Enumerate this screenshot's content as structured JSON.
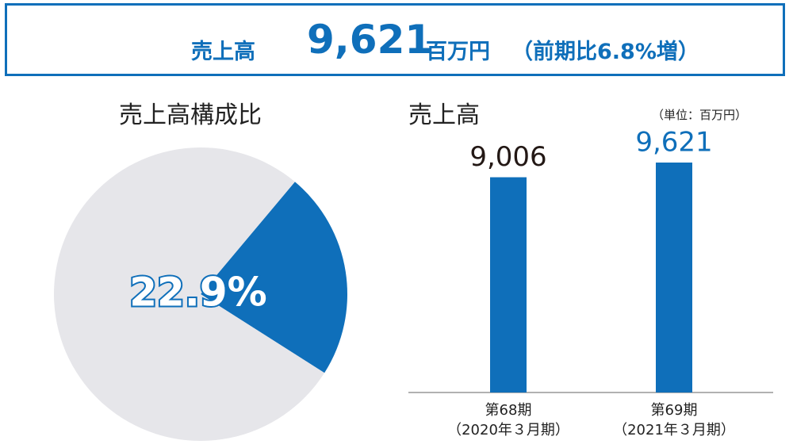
{
  "header": {
    "label": "売上高",
    "value": "9,621",
    "unit": "百万円",
    "note": "（前期比6.8%増）"
  },
  "chart_data": [
    {
      "type": "pie",
      "title": "売上高構成比",
      "values": [
        22.9,
        77.1
      ],
      "value_labels": [
        "22.9%",
        null
      ],
      "colors": [
        "#0f6fba",
        "#e6e6ea"
      ],
      "start_angle": 40
    },
    {
      "type": "bar",
      "title": "売上高",
      "unit_note": "（単位：百万円）",
      "categories": [
        "第68期\n（2020年３月期）",
        "第69期\n（2021年３月期）"
      ],
      "values": [
        9006,
        9621
      ],
      "value_labels": [
        "9,006",
        "9,621"
      ],
      "color": "#0f6fba",
      "label_colors": [
        "#231815",
        "#0f6fba"
      ]
    }
  ]
}
